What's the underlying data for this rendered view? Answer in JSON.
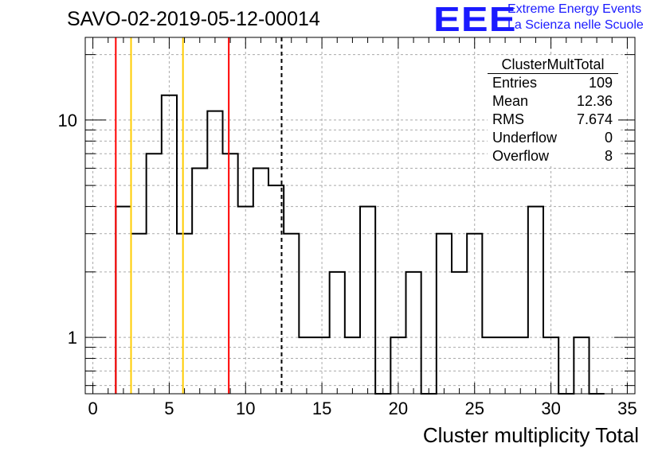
{
  "header": {
    "title": "SAVO-02-2019-05-12-00014",
    "logo": "EEE",
    "org_line1": "Extreme Energy Events",
    "org_line2": "La Scienza nelle Scuole"
  },
  "stats": {
    "title": "ClusterMultTotal",
    "rows": [
      {
        "label": "Entries",
        "value": "109"
      },
      {
        "label": "Mean",
        "value": "12.36"
      },
      {
        "label": "RMS",
        "value": "7.674"
      },
      {
        "label": "Underflow",
        "value": "0"
      },
      {
        "label": "Overflow",
        "value": "8"
      }
    ]
  },
  "chart_data": {
    "type": "histogram",
    "xlabel": "Cluster multiplicity Total",
    "ylabel": "",
    "xlim": [
      -0.5,
      35.5
    ],
    "ylim": [
      0.55,
      24
    ],
    "y_scale": "log",
    "grid": true,
    "bin_width": 1,
    "x_ticks": [
      0,
      5,
      10,
      15,
      20,
      25,
      30,
      35
    ],
    "y_ticks": [
      1,
      10
    ],
    "bins": [
      {
        "x": 2,
        "count": 4
      },
      {
        "x": 3,
        "count": 3
      },
      {
        "x": 4,
        "count": 7
      },
      {
        "x": 5,
        "count": 13
      },
      {
        "x": 6,
        "count": 3
      },
      {
        "x": 7,
        "count": 6
      },
      {
        "x": 8,
        "count": 11
      },
      {
        "x": 9,
        "count": 7
      },
      {
        "x": 10,
        "count": 4
      },
      {
        "x": 11,
        "count": 6
      },
      {
        "x": 12,
        "count": 5
      },
      {
        "x": 13,
        "count": 3
      },
      {
        "x": 14,
        "count": 1
      },
      {
        "x": 15,
        "count": 1
      },
      {
        "x": 16,
        "count": 2
      },
      {
        "x": 17,
        "count": 1
      },
      {
        "x": 18,
        "count": 4
      },
      {
        "x": 19,
        "count": 0
      },
      {
        "x": 20,
        "count": 1
      },
      {
        "x": 21,
        "count": 2
      },
      {
        "x": 22,
        "count": 0
      },
      {
        "x": 23,
        "count": 3
      },
      {
        "x": 24,
        "count": 2
      },
      {
        "x": 25,
        "count": 3
      },
      {
        "x": 26,
        "count": 1
      },
      {
        "x": 27,
        "count": 1
      },
      {
        "x": 28,
        "count": 1
      },
      {
        "x": 29,
        "count": 4
      },
      {
        "x": 30,
        "count": 1
      },
      {
        "x": 31,
        "count": 0
      },
      {
        "x": 32,
        "count": 1
      },
      {
        "x": 33,
        "count": 0
      }
    ],
    "vertical_lines": [
      {
        "x": 1.5,
        "color": "#ff0000",
        "style": "solid"
      },
      {
        "x": 2.5,
        "color": "#ffcc00",
        "style": "solid"
      },
      {
        "x": 5.9,
        "color": "#ffcc00",
        "style": "solid"
      },
      {
        "x": 8.9,
        "color": "#ff0000",
        "style": "solid"
      },
      {
        "x": 12.36,
        "color": "#000000",
        "style": "dashed"
      }
    ]
  }
}
